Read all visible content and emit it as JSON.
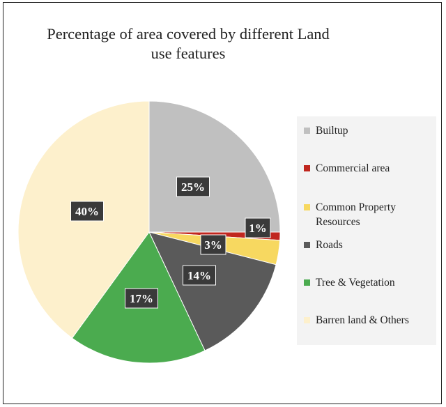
{
  "chart_data": {
    "type": "pie",
    "title": "Percentage of area covered by different Land use features",
    "title_lines": [
      "Percentage of area covered by different Land",
      "use features"
    ],
    "slices": [
      {
        "name": "Builtup",
        "value": 25,
        "label": "25%",
        "color": "#c0c0c0"
      },
      {
        "name": "Commercial area",
        "value": 1,
        "label": "1%",
        "color": "#c0261e"
      },
      {
        "name": "Common Property Resources",
        "value": 3,
        "label": "3%",
        "color": "#f7d860"
      },
      {
        "name": "Roads",
        "value": 14,
        "label": "14%",
        "color": "#5a5a5a"
      },
      {
        "name": "Tree & Vegetation",
        "value": 17,
        "label": "17%",
        "color": "#4bab4f"
      },
      {
        "name": "Barren land & Others",
        "value": 40,
        "label": "40%",
        "color": "#fdf0cc"
      }
    ],
    "legend_position": "right",
    "data_label_style": "dark box with white bold text"
  }
}
